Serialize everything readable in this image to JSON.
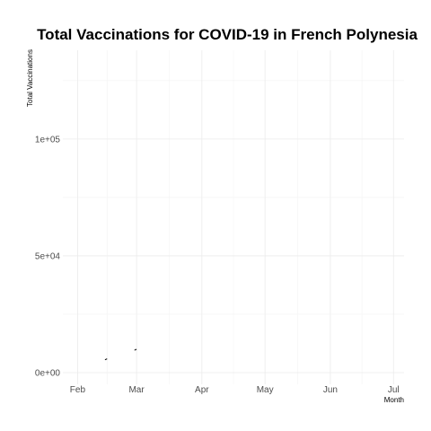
{
  "chart_data": {
    "type": "line",
    "title": "Total Vaccinations for COVID-19 in French Polynesia",
    "xlabel": "Month",
    "ylabel": "Total Vaccinations",
    "x_ticks": [
      {
        "date": "2021-02-01",
        "label": "Feb"
      },
      {
        "date": "2021-03-01",
        "label": "Mar"
      },
      {
        "date": "2021-04-01",
        "label": "Apr"
      },
      {
        "date": "2021-05-01",
        "label": "May"
      },
      {
        "date": "2021-06-01",
        "label": "Jun"
      },
      {
        "date": "2021-07-01",
        "label": "Jul"
      }
    ],
    "y_ticks": [
      {
        "value": 0,
        "label": "0e+00"
      },
      {
        "value": 50000,
        "label": "5e+04"
      },
      {
        "value": 100000,
        "label": "1e+05"
      }
    ],
    "xlim": [
      "2021-01-25",
      "2021-07-06"
    ],
    "ylim": [
      -5000,
      138000
    ],
    "grid": true,
    "series": [
      {
        "segments": [
          [
            {
              "x": "2021-02-14",
              "y": 5500
            },
            {
              "x": "2021-02-15",
              "y": 5900
            }
          ],
          [
            {
              "x": "2021-02-28",
              "y": 9600
            },
            {
              "x": "2021-03-01",
              "y": 10000
            }
          ]
        ]
      }
    ],
    "colors": {
      "line": "#000000",
      "grid": "#ebebeb",
      "tick_text": "#4d4d4d"
    }
  }
}
